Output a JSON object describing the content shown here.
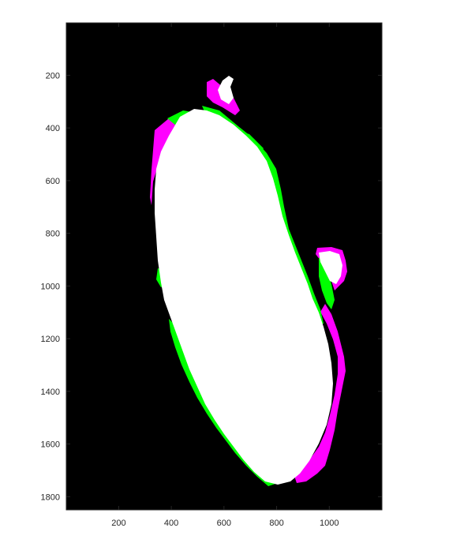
{
  "figure": {
    "type": "image-axes",
    "background_color": "#000000",
    "overlay_colors": {
      "foreground": "#ffffff",
      "image_a_only": "#00ff00",
      "image_b_only": "#ff00ff"
    },
    "x_axis": {
      "range": [
        1,
        1200
      ],
      "ticks": [
        200,
        400,
        600,
        800,
        1000
      ],
      "tick_labels": [
        "200",
        "400",
        "600",
        "800",
        "1000"
      ]
    },
    "y_axis": {
      "range": [
        1,
        1850
      ],
      "reversed": true,
      "ticks": [
        200,
        400,
        600,
        800,
        1000,
        1200,
        1400,
        1600,
        1800
      ],
      "tick_labels": [
        "200",
        "400",
        "600",
        "800",
        "1000",
        "1200",
        "1400",
        "1600",
        "1800"
      ]
    }
  }
}
